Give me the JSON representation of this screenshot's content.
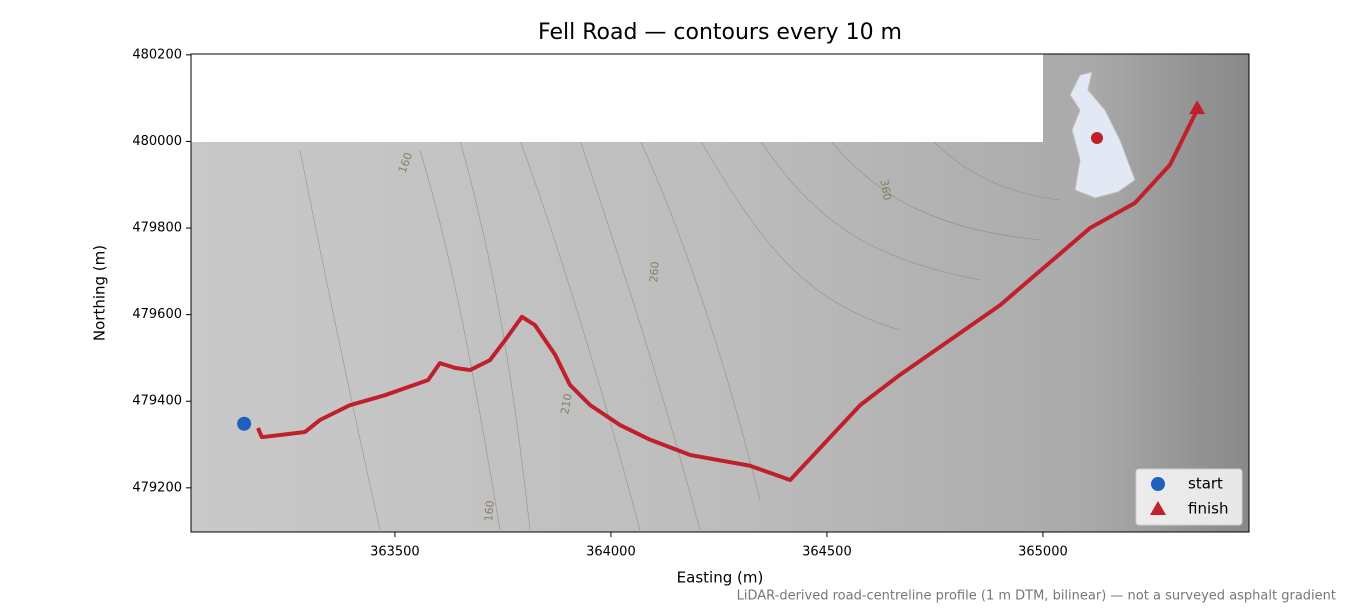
{
  "chart_data": {
    "type": "line",
    "title": "Fell Road — contours every 10 m",
    "x_label": "Easting (m)",
    "y_label": "Northing (m)",
    "note": "LiDAR-derived road-centreline profile (1 m DTM, bilinear) — not a surveyed asphalt gradient",
    "xlim": [
      363028,
      365477
    ],
    "ylim": [
      479098,
      480202
    ],
    "xticks": [
      363500,
      364000,
      364500,
      365000
    ],
    "yticks": [
      479200,
      479400,
      479600,
      479800,
      480000,
      480200
    ],
    "series": [
      {
        "color": "#c0202c",
        "x": [
          363183,
          363192,
          363292,
          363327,
          363396,
          363477,
          363577,
          363604,
          363639,
          363674,
          363720,
          363755,
          363794,
          363824,
          363871,
          363905,
          363952,
          364021,
          364091,
          364183,
          364322,
          364415,
          364577,
          364669,
          364901,
          365109,
          365213,
          365294,
          365357
        ],
        "values": [
          479338,
          479317,
          479329,
          479357,
          479391,
          479414,
          479449,
          479488,
          479477,
          479472,
          479495,
          479541,
          479595,
          479576,
          479507,
          479438,
          479391,
          479345,
          479311,
          479276,
          479251,
          479218,
          479391,
          479461,
          479622,
          479800,
          479858,
          479946,
          480073
        ]
      }
    ],
    "markers": [
      {
        "name": "start",
        "color": "#1f5fbf",
        "shape": "circle",
        "x": 363151,
        "y": 479348
      },
      {
        "name": "finish",
        "color": "#c0202c",
        "shape": "triangle",
        "x": 365357,
        "y": 480077
      }
    ],
    "contour_labels": [
      "160",
      "360",
      "260",
      "210",
      "160"
    ],
    "legend": "lower right"
  }
}
